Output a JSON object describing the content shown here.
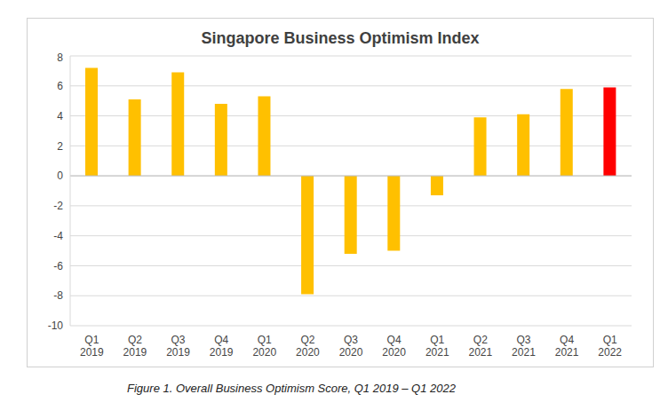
{
  "chart_data": {
    "type": "bar",
    "title": "Singapore Business Optimism Index",
    "caption": "Figure 1. Overall Business Optimism Score, Q1 2019 – Q1 2022",
    "categories": [
      "Q1 2019",
      "Q2 2019",
      "Q3 2019",
      "Q4 2019",
      "Q1 2020",
      "Q2 2020",
      "Q3 2020",
      "Q4 2020",
      "Q1 2021",
      "Q2 2021",
      "Q3 2021",
      "Q4 2021",
      "Q1 2022"
    ],
    "values": [
      7.2,
      5.1,
      6.9,
      4.8,
      5.3,
      -7.9,
      -5.2,
      -5.0,
      -1.3,
      3.9,
      4.1,
      5.8,
      5.9
    ],
    "colors": [
      "#FFC000",
      "#FFC000",
      "#FFC000",
      "#FFC000",
      "#FFC000",
      "#FFC000",
      "#FFC000",
      "#FFC000",
      "#FFC000",
      "#FFC000",
      "#FFC000",
      "#FFC000",
      "#FF0000"
    ],
    "ylim": [
      -10,
      8
    ],
    "yticks": [
      -10,
      -8,
      -6,
      -4,
      -2,
      0,
      2,
      4,
      6,
      8
    ],
    "grid": true
  }
}
